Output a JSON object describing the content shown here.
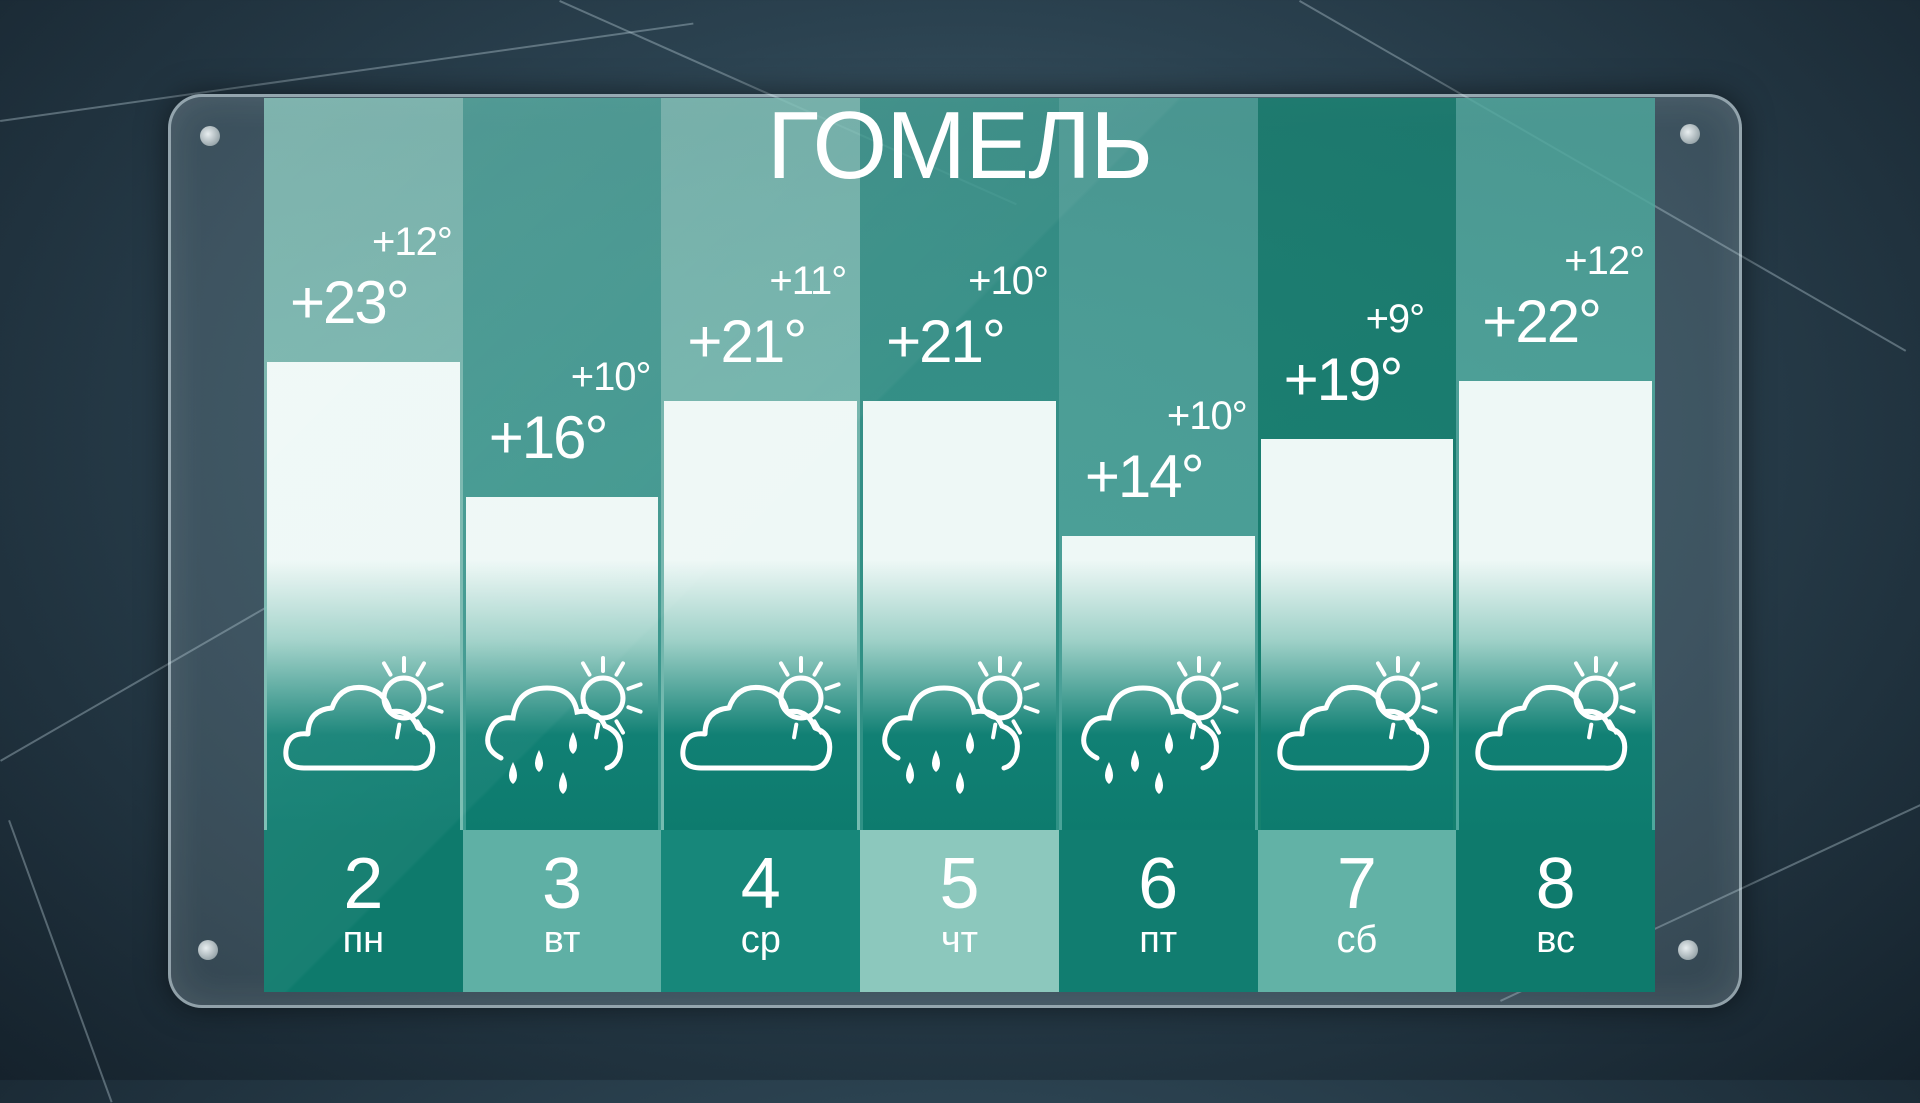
{
  "city": "ГОМЕЛЬ",
  "days": [
    {
      "date": "2",
      "weekday": "пн",
      "high": "+23°",
      "low": "+12°",
      "high_value": 23,
      "condition": "partly-cloudy",
      "top_color": "#78bdb2",
      "date_color": "#0e7a6c"
    },
    {
      "date": "3",
      "weekday": "вт",
      "high": "+16°",
      "low": "+10°",
      "high_value": 16,
      "condition": "rain-with-sun",
      "top_color": "#3b9a8f",
      "date_color": "#5fb0a5"
    },
    {
      "date": "4",
      "weekday": "ср",
      "high": "+21°",
      "low": "+11°",
      "high_value": 21,
      "condition": "partly-cloudy",
      "top_color": "#74bbb0",
      "date_color": "#17877a"
    },
    {
      "date": "5",
      "weekday": "чт",
      "high": "+21°",
      "low": "+10°",
      "high_value": 21,
      "condition": "rain-with-sun",
      "top_color": "#2f9286",
      "date_color": "#8cc8bd"
    },
    {
      "date": "6",
      "weekday": "пт",
      "high": "+14°",
      "low": "+10°",
      "high_value": 14,
      "condition": "rain-with-sun",
      "top_color": "#4aa399",
      "date_color": "#117d70"
    },
    {
      "date": "7",
      "weekday": "сб",
      "high": "+19°",
      "low": "+9°",
      "high_value": 19,
      "condition": "partly-cloudy",
      "top_color": "#14806f",
      "date_color": "#62b2a6"
    },
    {
      "date": "8",
      "weekday": "вс",
      "high": "+22°",
      "low": "+12°",
      "high_value": 22,
      "condition": "partly-cloudy",
      "top_color": "#4ea89d",
      "date_color": "#0e7a6c"
    }
  ]
}
